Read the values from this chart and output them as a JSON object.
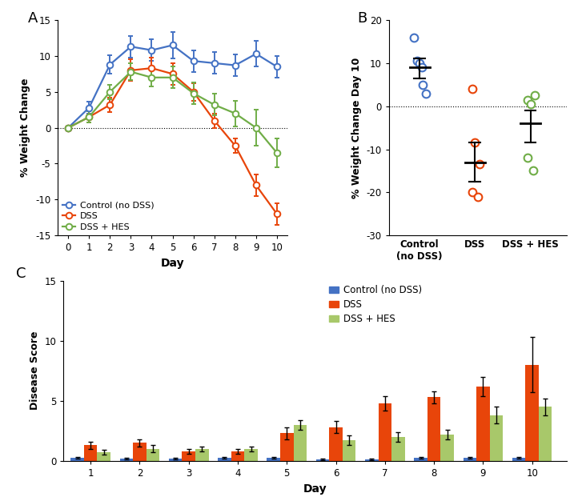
{
  "panel_A": {
    "days": [
      0,
      1,
      2,
      3,
      4,
      5,
      6,
      7,
      8,
      9,
      10
    ],
    "control_mean": [
      0,
      2.8,
      8.8,
      11.3,
      10.8,
      11.5,
      9.3,
      9.0,
      8.7,
      10.3,
      8.5
    ],
    "control_err": [
      0,
      0.8,
      1.3,
      1.5,
      1.5,
      1.8,
      1.5,
      1.5,
      1.5,
      1.8,
      1.5
    ],
    "dss_mean": [
      0,
      1.5,
      3.2,
      8.0,
      8.3,
      7.5,
      5.0,
      1.0,
      -2.5,
      -8.0,
      -12.0
    ],
    "dss_err": [
      0,
      0.8,
      1.0,
      1.5,
      1.5,
      1.5,
      1.2,
      1.0,
      1.0,
      1.5,
      1.5
    ],
    "hes_mean": [
      0,
      1.5,
      5.0,
      7.8,
      7.0,
      7.0,
      4.8,
      3.2,
      2.0,
      0.0,
      -3.5
    ],
    "hes_err": [
      0,
      0.8,
      1.0,
      1.2,
      1.2,
      1.5,
      1.5,
      1.5,
      1.8,
      2.5,
      2.0
    ],
    "control_color": "#4472C4",
    "dss_color": "#E8450A",
    "hes_color": "#70AD47",
    "ylabel": "% Weight Change",
    "xlabel": "Day",
    "ylim": [
      -15,
      15
    ],
    "yticks": [
      -15,
      -10,
      -5,
      0,
      5,
      10,
      15
    ]
  },
  "panel_B": {
    "control_points": [
      16.0,
      10.5,
      10.0,
      5.0,
      3.0,
      9.0
    ],
    "control_jitter": [
      -0.1,
      -0.05,
      0.0,
      0.06,
      0.12,
      0.04
    ],
    "dss_points": [
      4.0,
      -8.5,
      -13.5,
      -20.0,
      -21.0
    ],
    "dss_jitter": [
      -0.05,
      0.0,
      0.08,
      -0.05,
      0.05
    ],
    "hes_points": [
      1.5,
      2.5,
      0.5,
      -12.0,
      -15.0
    ],
    "hes_jitter": [
      -0.05,
      0.08,
      0.0,
      -0.05,
      0.05
    ],
    "control_mean": 9.0,
    "control_sem_low": 6.5,
    "control_sem_high": 11.0,
    "dss_mean": -13.0,
    "dss_sem_low": -17.5,
    "dss_sem_high": -8.5,
    "hes_mean": -4.0,
    "hes_sem_low": -8.5,
    "hes_sem_high": -1.0,
    "control_color": "#4472C4",
    "dss_color": "#E8450A",
    "hes_color": "#70AD47",
    "ylabel": "% Weight Change Day 10",
    "ylim": [
      -30,
      20
    ],
    "yticks": [
      -30,
      -20,
      -10,
      0,
      10,
      20
    ],
    "categories": [
      "Control\n(no DSS)",
      "DSS",
      "DSS + HES"
    ]
  },
  "panel_C": {
    "days": [
      1,
      2,
      3,
      4,
      5,
      6,
      7,
      8,
      9,
      10
    ],
    "control_mean": [
      0.25,
      0.18,
      0.18,
      0.28,
      0.28,
      0.15,
      0.15,
      0.28,
      0.28,
      0.28
    ],
    "control_err": [
      0.08,
      0.06,
      0.06,
      0.08,
      0.08,
      0.06,
      0.06,
      0.08,
      0.08,
      0.08
    ],
    "dss_mean": [
      1.3,
      1.5,
      0.8,
      0.8,
      2.3,
      2.8,
      4.8,
      5.3,
      6.2,
      8.0
    ],
    "dss_err": [
      0.3,
      0.3,
      0.2,
      0.2,
      0.5,
      0.5,
      0.6,
      0.5,
      0.8,
      2.3
    ],
    "hes_mean": [
      0.7,
      1.0,
      1.0,
      1.0,
      3.0,
      1.7,
      2.0,
      2.2,
      3.8,
      4.5
    ],
    "hes_err": [
      0.2,
      0.3,
      0.2,
      0.2,
      0.4,
      0.4,
      0.4,
      0.4,
      0.7,
      0.7
    ],
    "control_color": "#4472C4",
    "dss_color": "#E8450A",
    "hes_color": "#A8C86A",
    "ylabel": "Disease Score",
    "xlabel": "Day",
    "ylim": [
      0,
      15
    ],
    "yticks": [
      0,
      5,
      10,
      15
    ]
  }
}
